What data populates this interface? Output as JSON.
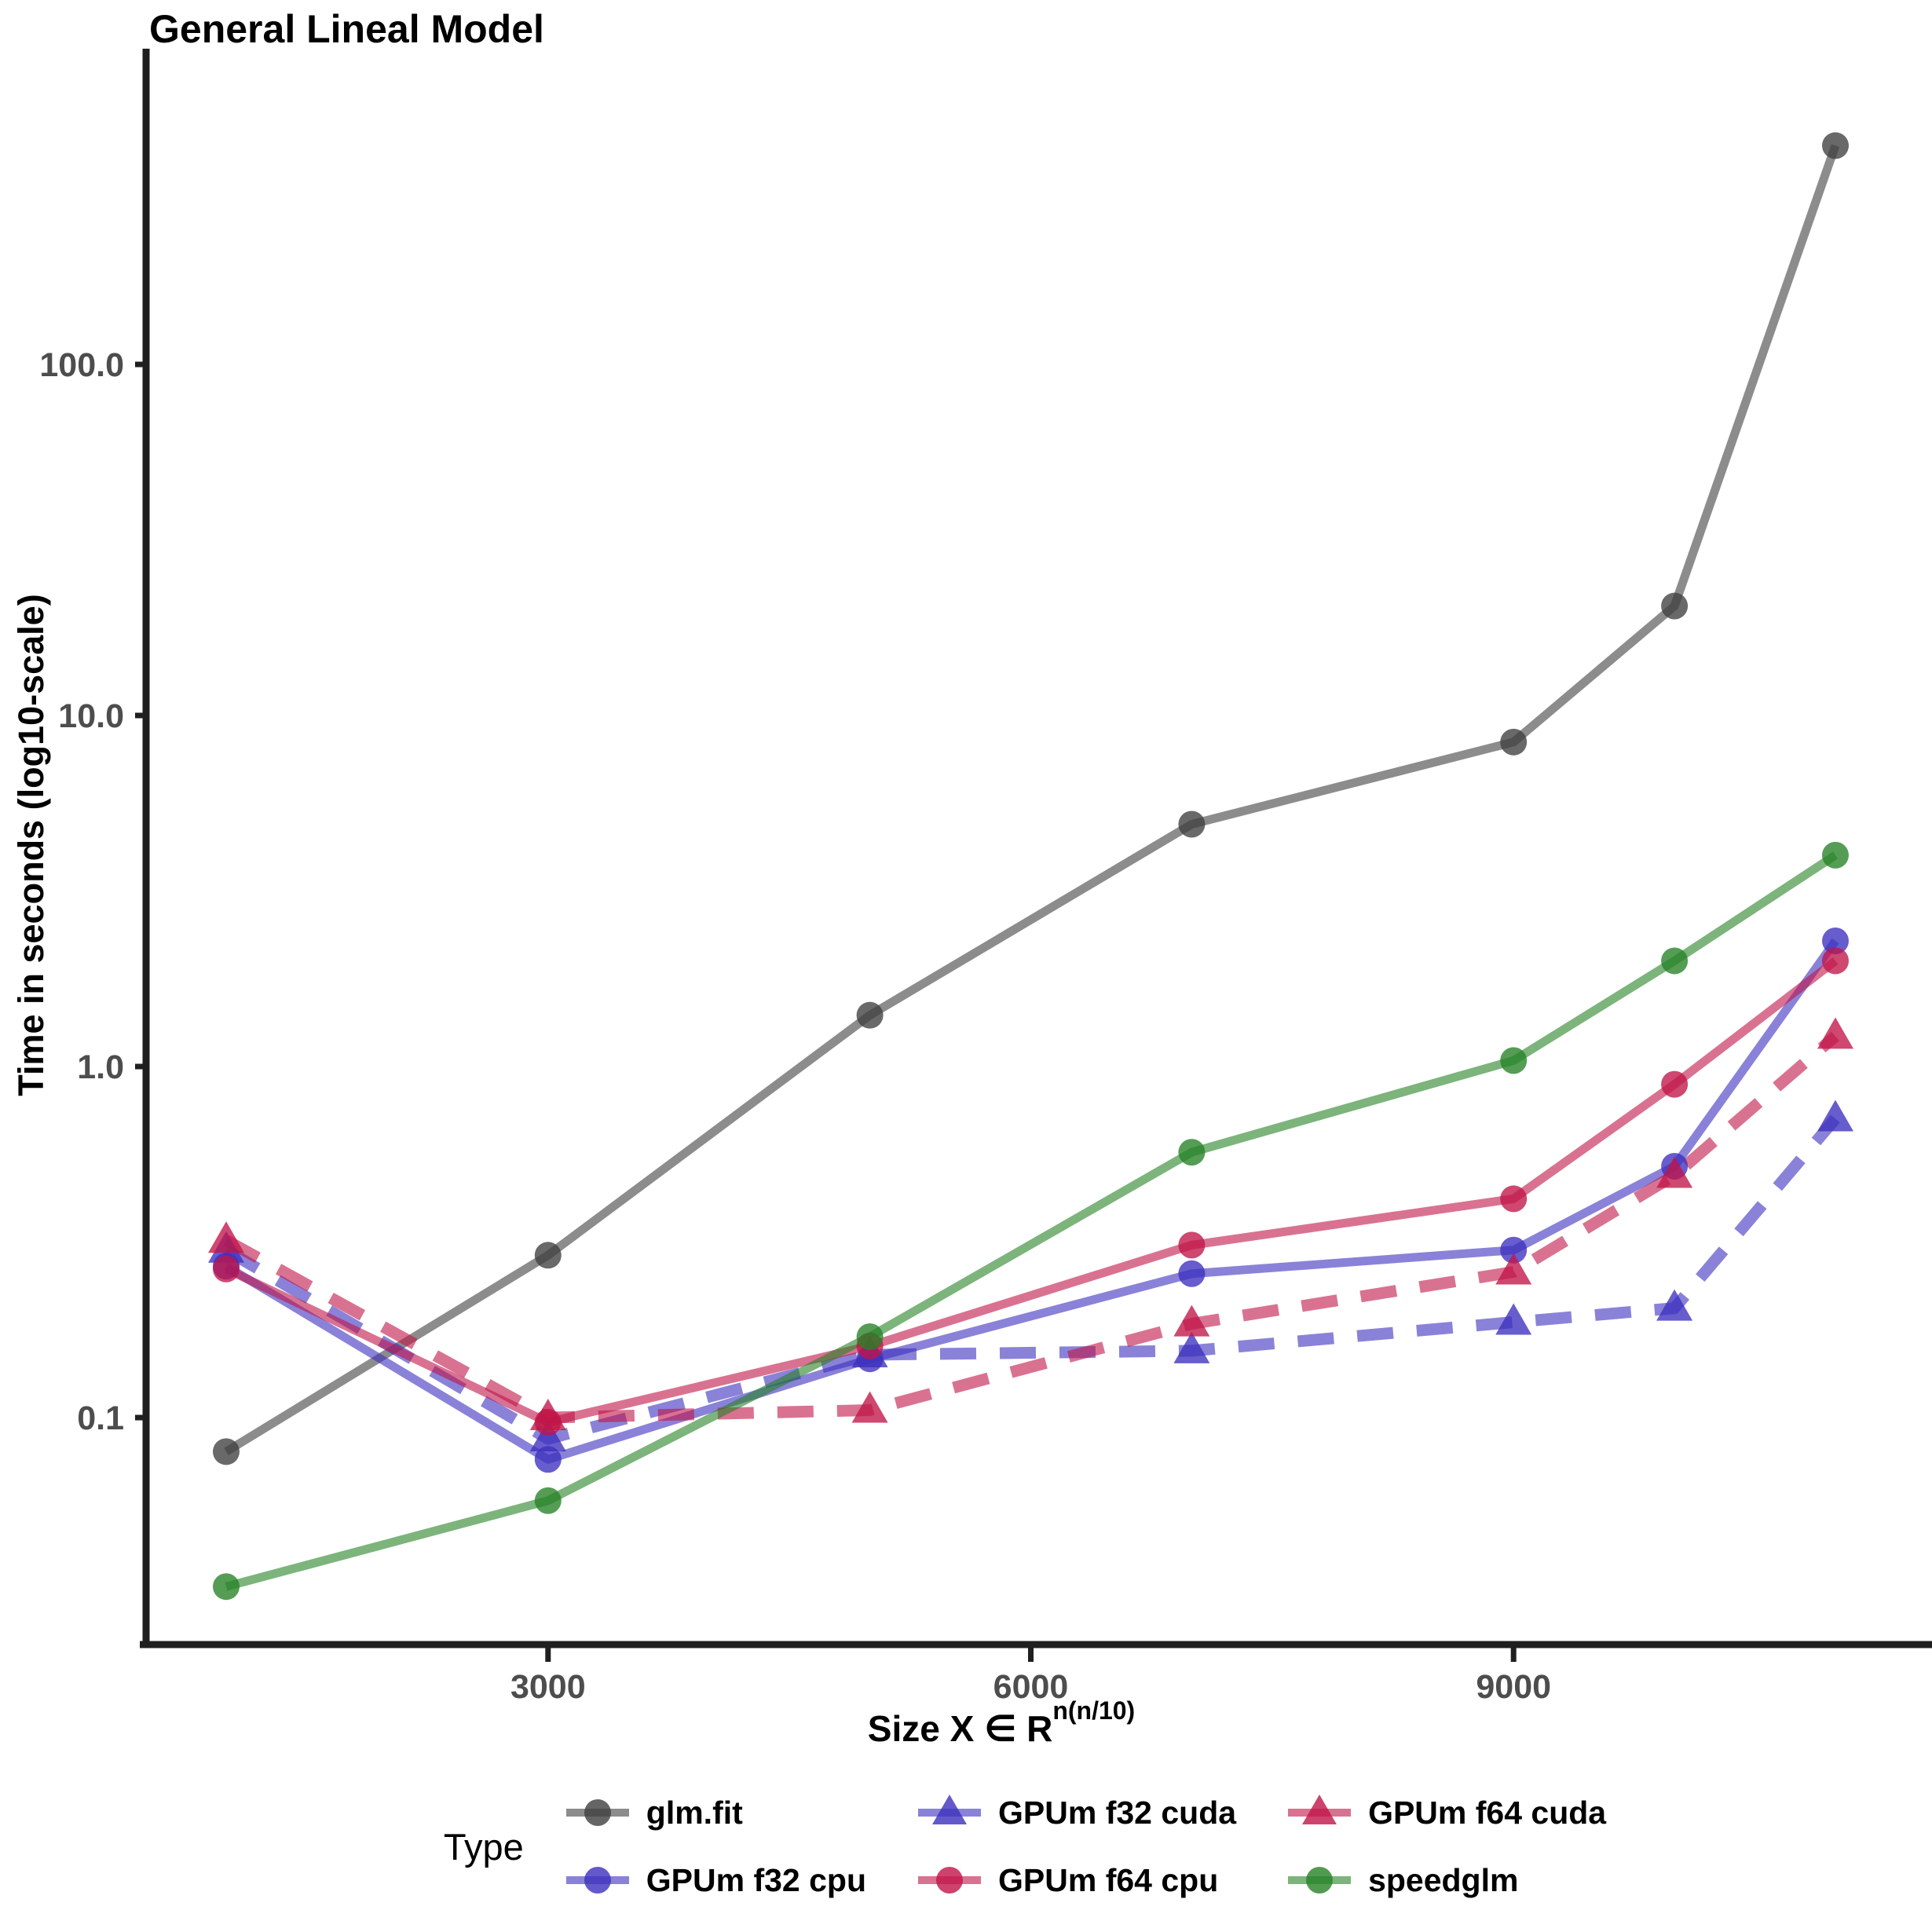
{
  "title": "General Lineal Model",
  "axes": {
    "y_label": "Time in seconds (log10-scale)",
    "x_label_prefix": "Size  X ∈ R",
    "x_label_superscript": "n(n/10)",
    "y_tick_labels": [
      "100.0",
      "10.0",
      "1.0",
      "0.1"
    ],
    "x_tick_labels": [
      "3000",
      "6000",
      "9000"
    ],
    "tick_label_color": "#4D4D4D",
    "axis_line_color": "#1f1f1f"
  },
  "legend": {
    "title": "Type",
    "row1": [
      "glm.fit",
      "GPUm f32 cuda",
      "GPUm f64 cuda"
    ],
    "row2": [
      "GPUm f32 cpu",
      "GPUm f64 cpu",
      "speedglm"
    ]
  },
  "chart_data": {
    "type": "line",
    "title": "General Lineal Model",
    "xlabel": "Size X ∈ R^n(n/10)",
    "ylabel": "Time in seconds (log10-scale)",
    "y_scale": "log10",
    "grid": false,
    "legend_position": "bottom",
    "x": [
      1000,
      3000,
      5000,
      7000,
      9000,
      10000,
      11000
    ],
    "x_ticks": [
      3000,
      6000,
      9000
    ],
    "y_ticks": [
      0.1,
      1.0,
      10.0,
      100.0
    ],
    "xlim": [
      500,
      11400
    ],
    "ylim": [
      0.022,
      780
    ],
    "series": [
      {
        "name": "glm.fit",
        "color": "#3F3F3F",
        "line": "solid",
        "marker": "circle",
        "values": [
          0.08,
          0.29,
          1.4,
          4.9,
          8.4,
          20.5,
          420
        ]
      },
      {
        "name": "GPUm f32 cpu",
        "color": "#3C2FBE",
        "line": "solid",
        "marker": "circle",
        "values": [
          0.27,
          0.076,
          0.147,
          0.257,
          0.3,
          0.52,
          2.28
        ]
      },
      {
        "name": "GPUm f32 cuda",
        "color": "#3C2FBE",
        "line": "dashed",
        "marker": "triangle",
        "values": [
          0.3,
          0.087,
          0.151,
          0.155,
          0.187,
          0.205,
          0.71
        ]
      },
      {
        "name": "GPUm f64 cpu",
        "color": "#C01448",
        "line": "solid",
        "marker": "circle",
        "values": [
          0.265,
          0.097,
          0.16,
          0.31,
          0.42,
          0.89,
          2.0
        ]
      },
      {
        "name": "GPUm f64 cuda",
        "color": "#C01448",
        "line": "dashed",
        "marker": "triangle",
        "values": [
          0.32,
          0.1,
          0.105,
          0.185,
          0.26,
          0.49,
          1.22
        ]
      },
      {
        "name": "speedglm",
        "color": "#258225",
        "line": "solid",
        "marker": "circle",
        "values": [
          0.033,
          0.058,
          0.17,
          0.57,
          1.04,
          2.0,
          4.0
        ]
      }
    ]
  }
}
